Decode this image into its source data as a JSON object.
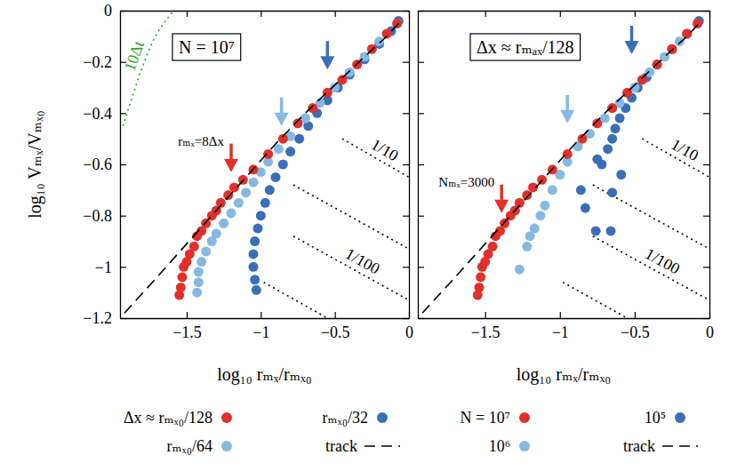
{
  "chart_data": [
    {
      "type": "scatter",
      "title": "N = 10⁷",
      "x_label": "log₁₀ rₘₓ/rₘₓ₀",
      "y_label": "log₁₀ Vₘₓ/Vₘₓ₀",
      "annotation": "rₘₓ=8Δx",
      "xlim": [
        -1.95,
        0
      ],
      "ylim": [
        -1.2,
        0
      ],
      "xticks": [
        {
          "value": -1.5,
          "label": "−1.5"
        },
        {
          "value": -1,
          "label": "−1"
        },
        {
          "value": -0.5,
          "label": "−0.5"
        },
        0
      ],
      "yticks": [
        {
          "value": -1.2,
          "label": "−1.2"
        },
        {
          "value": -1,
          "label": "−1"
        },
        {
          "value": -0.8,
          "label": "−0.8"
        },
        {
          "value": -0.6,
          "label": "−0.6"
        },
        {
          "value": -0.4,
          "label": "−0.4"
        },
        {
          "value": -0.2,
          "label": "−0.2"
        },
        0
      ],
      "legend": "bottom",
      "series": [
        {
          "name": "Δx ≈ rₘₓ₀/128",
          "color": "#e0302a",
          "marker": "circle",
          "x": [
            -0.08,
            -0.15,
            -0.25,
            -0.35,
            -0.45,
            -0.55,
            -0.65,
            -0.75,
            -0.85,
            -0.95,
            -1.05,
            -1.12,
            -1.18,
            -1.22,
            -1.27,
            -1.3,
            -1.33,
            -1.37,
            -1.4,
            -1.43,
            -1.45,
            -1.48,
            -1.5,
            -1.52,
            -1.53,
            -1.54,
            -1.55
          ],
          "values": [
            -0.05,
            -0.09,
            -0.15,
            -0.21,
            -0.27,
            -0.32,
            -0.38,
            -0.44,
            -0.5,
            -0.56,
            -0.62,
            -0.66,
            -0.69,
            -0.72,
            -0.75,
            -0.78,
            -0.8,
            -0.83,
            -0.86,
            -0.88,
            -0.92,
            -0.95,
            -0.98,
            -1.0,
            -1.04,
            -1.08,
            -1.11
          ],
          "arrow_x": -1.2,
          "arrow_y": -0.63
        },
        {
          "name": "rₘₓ₀/64",
          "color": "#86b9e2",
          "marker": "circle",
          "x": [
            -0.08,
            -0.2,
            -0.3,
            -0.4,
            -0.5,
            -0.6,
            -0.7,
            -0.8,
            -0.88,
            -0.95,
            -1.0,
            -1.05,
            -1.1,
            -1.15,
            -1.2,
            -1.25,
            -1.3,
            -1.33,
            -1.37,
            -1.4,
            -1.42,
            -1.42,
            -1.43
          ],
          "values": [
            -0.05,
            -0.12,
            -0.18,
            -0.24,
            -0.3,
            -0.36,
            -0.42,
            -0.49,
            -0.54,
            -0.59,
            -0.63,
            -0.67,
            -0.71,
            -0.75,
            -0.79,
            -0.83,
            -0.87,
            -0.9,
            -0.94,
            -0.98,
            -1.02,
            -1.06,
            -1.1
          ],
          "arrow_x": -0.86,
          "arrow_y": -0.45
        },
        {
          "name": "rₘₓ₀/32",
          "color": "#3a6fb7",
          "marker": "circle",
          "x": [
            -0.07,
            -0.12,
            -0.2,
            -0.3,
            -0.4,
            -0.48,
            -0.55,
            -0.62,
            -0.68,
            -0.74,
            -0.8,
            -0.85,
            -0.9,
            -0.94,
            -0.97,
            -1.0,
            -1.02,
            -1.04,
            -1.05,
            -1.05,
            -1.04,
            -1.03
          ],
          "values": [
            -0.04,
            -0.08,
            -0.13,
            -0.19,
            -0.25,
            -0.3,
            -0.35,
            -0.4,
            -0.45,
            -0.5,
            -0.55,
            -0.6,
            -0.65,
            -0.7,
            -0.75,
            -0.8,
            -0.85,
            -0.9,
            -0.95,
            -1.0,
            -1.05,
            -1.09
          ],
          "arrow_x": -0.55,
          "arrow_y": -0.23
        },
        {
          "name": "track",
          "type": "line",
          "line_style": "dashed",
          "color": "#000000",
          "x": [
            -1.92,
            -1.7,
            -1.5,
            -1.3,
            -1.1,
            -0.9,
            -0.7,
            -0.5,
            -0.3,
            -0.15,
            -0.07
          ],
          "values": [
            -1.18,
            -1.04,
            -0.91,
            -0.78,
            -0.65,
            -0.52,
            -0.4,
            -0.29,
            -0.18,
            -0.1,
            -0.05
          ]
        }
      ],
      "guides": [
        {
          "label": "10Δt",
          "color": "#2ca02c",
          "line_style": "dotted",
          "lines": [
            {
              "x": [
                -1.93,
                -1.88,
                -1.83,
                -1.78,
                -1.73,
                -1.68,
                -1.63,
                -1.59
              ],
              "y": [
                -0.45,
                -0.36,
                -0.27,
                -0.19,
                -0.12,
                -0.07,
                -0.03,
                0
              ]
            }
          ]
        },
        {
          "label": "1/10",
          "color": "#000000",
          "line_style": "dotted",
          "lines": [
            {
              "x": [
                -0.45,
                0
              ],
              "y": [
                -0.5,
                -0.65
              ]
            },
            {
              "x": [
                -0.78,
                0
              ],
              "y": [
                -0.68,
                -0.93
              ]
            }
          ]
        },
        {
          "label": "1/100",
          "color": "#000000",
          "line_style": "dotted",
          "lines": [
            {
              "x": [
                -0.78,
                0
              ],
              "y": [
                -0.88,
                -1.13
              ]
            },
            {
              "x": [
                -0.98,
                -0.55
              ],
              "y": [
                -1.06,
                -1.2
              ]
            }
          ]
        }
      ]
    },
    {
      "type": "scatter",
      "title": "Δx ≈ rₘₐₓ/128",
      "x_label": "log₁₀ rₘₓ/rₘₓ₀",
      "annotation": "Nₘₓ=3000",
      "xlim": [
        -1.95,
        0
      ],
      "ylim": [
        -1.2,
        0
      ],
      "xticks": [
        {
          "value": -1.5,
          "label": "−1.5"
        },
        {
          "value": -1,
          "label": "−1"
        },
        {
          "value": -0.5,
          "label": "−0.5"
        },
        0
      ],
      "yticks": [
        {
          "value": -1.2,
          "label": "−1.2"
        },
        {
          "value": -1,
          "label": "−1"
        },
        {
          "value": -0.8,
          "label": "−0.8"
        },
        {
          "value": -0.6,
          "label": "−0.6"
        },
        {
          "value": -0.4,
          "label": "−0.4"
        },
        {
          "value": -0.2,
          "label": "−0.2"
        },
        0
      ],
      "tick_labels": "x",
      "legend": "bottom",
      "series": [
        {
          "name": "N = 10⁷",
          "color": "#e0302a",
          "marker": "circle",
          "x": [
            -0.08,
            -0.15,
            -0.25,
            -0.35,
            -0.45,
            -0.55,
            -0.65,
            -0.75,
            -0.85,
            -0.95,
            -1.05,
            -1.12,
            -1.18,
            -1.22,
            -1.27,
            -1.3,
            -1.33,
            -1.37,
            -1.4,
            -1.43,
            -1.45,
            -1.48,
            -1.5,
            -1.52,
            -1.53,
            -1.54,
            -1.55
          ],
          "values": [
            -0.05,
            -0.09,
            -0.15,
            -0.21,
            -0.27,
            -0.32,
            -0.38,
            -0.44,
            -0.5,
            -0.56,
            -0.62,
            -0.66,
            -0.69,
            -0.72,
            -0.75,
            -0.78,
            -0.8,
            -0.83,
            -0.86,
            -0.88,
            -0.92,
            -0.95,
            -0.98,
            -1.0,
            -1.04,
            -1.08,
            -1.11
          ],
          "arrow_x": -1.39,
          "arrow_y": -0.79
        },
        {
          "name": "10⁶",
          "color": "#86b9e2",
          "marker": "circle",
          "x": [
            -0.08,
            -0.2,
            -0.3,
            -0.4,
            -0.5,
            -0.6,
            -0.7,
            -0.8,
            -0.88,
            -0.95,
            -1.0,
            -1.05,
            -1.1,
            -1.13,
            -1.17,
            -1.2,
            -1.22,
            -1.27
          ],
          "values": [
            -0.05,
            -0.12,
            -0.18,
            -0.24,
            -0.3,
            -0.36,
            -0.42,
            -0.48,
            -0.53,
            -0.59,
            -0.64,
            -0.7,
            -0.76,
            -0.8,
            -0.85,
            -0.88,
            -0.92,
            -1.01
          ],
          "arrow_x": -0.95,
          "arrow_y": -0.44
        },
        {
          "name": "10⁵",
          "color": "#3a6fb7",
          "marker": "circle",
          "x": [
            -0.07,
            -0.15,
            -0.25,
            -0.35,
            -0.42,
            -0.48,
            -0.52,
            -0.56,
            -0.6,
            -0.63,
            -0.65,
            -0.68,
            -0.72,
            -0.75,
            -0.59,
            -0.65,
            -0.86,
            -0.83,
            -0.76,
            -0.66
          ],
          "values": [
            -0.04,
            -0.09,
            -0.15,
            -0.21,
            -0.26,
            -0.3,
            -0.34,
            -0.38,
            -0.42,
            -0.46,
            -0.5,
            -0.54,
            -0.6,
            -0.58,
            -0.64,
            -0.71,
            -0.7,
            -0.77,
            -0.86,
            -0.86
          ],
          "arrow_x": -0.52,
          "arrow_y": -0.17
        },
        {
          "name": "track",
          "type": "line",
          "line_style": "dashed",
          "color": "#000000",
          "x": [
            -1.92,
            -1.7,
            -1.5,
            -1.3,
            -1.1,
            -0.9,
            -0.7,
            -0.5,
            -0.3,
            -0.15,
            -0.07
          ],
          "values": [
            -1.18,
            -1.04,
            -0.91,
            -0.78,
            -0.65,
            -0.52,
            -0.4,
            -0.29,
            -0.18,
            -0.1,
            -0.05
          ]
        }
      ],
      "guides": [
        {
          "label": "1/10",
          "color": "#000000",
          "line_style": "dotted",
          "lines": [
            {
              "x": [
                -0.45,
                0
              ],
              "y": [
                -0.5,
                -0.65
              ]
            },
            {
              "x": [
                -0.78,
                0
              ],
              "y": [
                -0.68,
                -0.93
              ]
            }
          ]
        },
        {
          "label": "1/100",
          "color": "#000000",
          "line_style": "dotted",
          "lines": [
            {
              "x": [
                -0.78,
                0
              ],
              "y": [
                -0.88,
                -1.13
              ]
            },
            {
              "x": [
                -0.98,
                -0.55
              ],
              "y": [
                -1.06,
                -1.2
              ]
            }
          ]
        }
      ]
    }
  ]
}
